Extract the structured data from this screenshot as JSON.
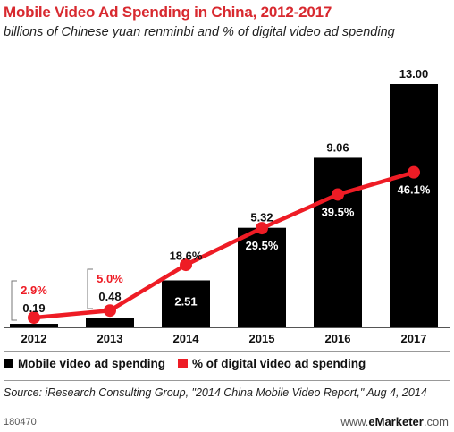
{
  "header": {
    "title": "Mobile Video Ad Spending in China, 2012-2017",
    "subtitle": "billions of Chinese yuan renminbi and % of digital video ad spending"
  },
  "legend": {
    "bar_label": "Mobile video ad spending",
    "line_label": "% of digital video ad spending"
  },
  "footer": {
    "source": "Source: iResearch Consulting Group, \"2014 China Mobile Video Report,\" Aug 4, 2014",
    "chart_id": "180470",
    "brand_prefix": "www.",
    "brand_name": "eMarketer",
    "brand_suffix": ".com"
  },
  "colors": {
    "bar": "#000000",
    "line": "#ee1c25",
    "title": "#d8292f"
  },
  "chart_data": {
    "type": "bar",
    "categories": [
      "2012",
      "2013",
      "2014",
      "2015",
      "2016",
      "2017"
    ],
    "series": [
      {
        "name": "Mobile video ad spending",
        "type": "bar",
        "values": [
          0.19,
          0.48,
          2.51,
          5.32,
          9.06,
          13.0
        ],
        "labels": [
          "0.19",
          "0.48",
          "2.51",
          "5.32",
          "9.06",
          "13.00"
        ]
      },
      {
        "name": "% of digital video ad spending",
        "type": "line",
        "values": [
          2.9,
          5.0,
          18.6,
          29.5,
          39.5,
          46.1
        ],
        "labels": [
          "2.9%",
          "5.0%",
          "18.6%",
          "29.5%",
          "39.5%",
          "46.1%"
        ]
      }
    ],
    "bar_ylim": [
      0,
      13
    ],
    "line_ylim": [
      0,
      75
    ],
    "grid": false,
    "legend_position": "bottom"
  }
}
